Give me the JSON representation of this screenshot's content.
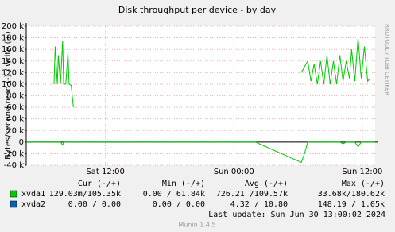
{
  "chart_data": {
    "type": "line",
    "title": "Disk throughput per device - by day",
    "y_label": "Bytes/second read (-) / write (+)",
    "watermark": "RRDTOOL / TOBI OETIKER",
    "x": [
      4.6,
      6.0,
      7.2,
      7.3,
      7.5,
      7.6,
      7.8,
      8.0,
      8.1,
      8.3,
      8.5,
      8.6,
      8.8,
      9.0,
      10,
      14,
      18,
      22,
      26,
      30.3,
      30.6,
      30.9,
      31.2,
      31.5,
      31.8,
      32.1,
      32.4,
      32.7,
      33.0,
      33.3,
      33.6,
      33.9,
      34.2,
      34.5,
      34.8,
      35.0,
      35.3,
      35.6,
      35.9,
      36.2,
      36.5,
      36.7,
      37.2
    ],
    "xlim": [
      4.6,
      37.2
    ],
    "xticks": [
      {
        "value": 12,
        "label": "Sat 12:00"
      },
      {
        "value": 24,
        "label": "Sun 00:00"
      },
      {
        "value": 36,
        "label": "Sun 12:00"
      }
    ],
    "ylim": [
      -40000,
      200000
    ],
    "yticks": [
      {
        "value": -40000,
        "label": "-40 k"
      },
      {
        "value": -20000,
        "label": "-20 k"
      },
      0,
      {
        "value": 20000,
        "label": "20 k"
      },
      {
        "value": 40000,
        "label": "40 k"
      },
      {
        "value": 60000,
        "label": "60 k"
      },
      {
        "value": 80000,
        "label": "80 k"
      },
      {
        "value": 100000,
        "label": "100 k"
      },
      {
        "value": 120000,
        "label": "120 k"
      },
      {
        "value": 140000,
        "label": "140 k"
      },
      {
        "value": 160000,
        "label": "160 k"
      },
      {
        "value": 180000,
        "label": "180 k"
      },
      {
        "value": 200000,
        "label": "200 k"
      }
    ],
    "grid": true,
    "legend_headers": [
      "Cur (-/+)",
      "Min (-/+)",
      "Avg (-/+)",
      "Max (-/+)"
    ],
    "series": [
      {
        "name": "xvda1",
        "color": "#00cc00",
        "values": [
          null,
          null,
          100000,
          165000,
          100000,
          150000,
          100000,
          175000,
          100000,
          100000,
          155000,
          100000,
          98000,
          60000,
          null,
          null,
          null,
          null,
          null,
          120000,
          130000,
          140000,
          105000,
          135000,
          100000,
          140000,
          100000,
          150000,
          100000,
          140000,
          100000,
          150000,
          105000,
          140000,
          110000,
          160000,
          105000,
          180000,
          110000,
          165000,
          105000,
          110000,
          null
        ],
        "read_values": [
          0,
          0,
          0,
          0,
          0,
          0,
          0,
          -5000,
          0,
          0,
          0,
          0,
          0,
          0,
          0,
          0,
          0,
          0,
          0,
          -35000,
          -20000,
          0,
          0,
          0,
          0,
          0,
          0,
          0,
          0,
          0,
          0,
          0,
          -3000,
          0,
          0,
          0,
          0,
          -8000,
          0,
          0,
          0,
          0,
          0
        ],
        "stats": [
          "129.03m/105.35k",
          "0.00 / 61.84k",
          "726.21 /109.57k",
          "33.68k/180.62k"
        ]
      },
      {
        "name": "xvda2",
        "color": "#0066b3",
        "stats": [
          "0.00 /  0.00",
          "0.00 /  0.00",
          "4.32 / 10.80",
          "148.19 / 1.05k"
        ]
      }
    ],
    "last_update": "Last update:  Sun Jun 30 13:00:02 2024",
    "footer": "Munin 1.4.5"
  }
}
